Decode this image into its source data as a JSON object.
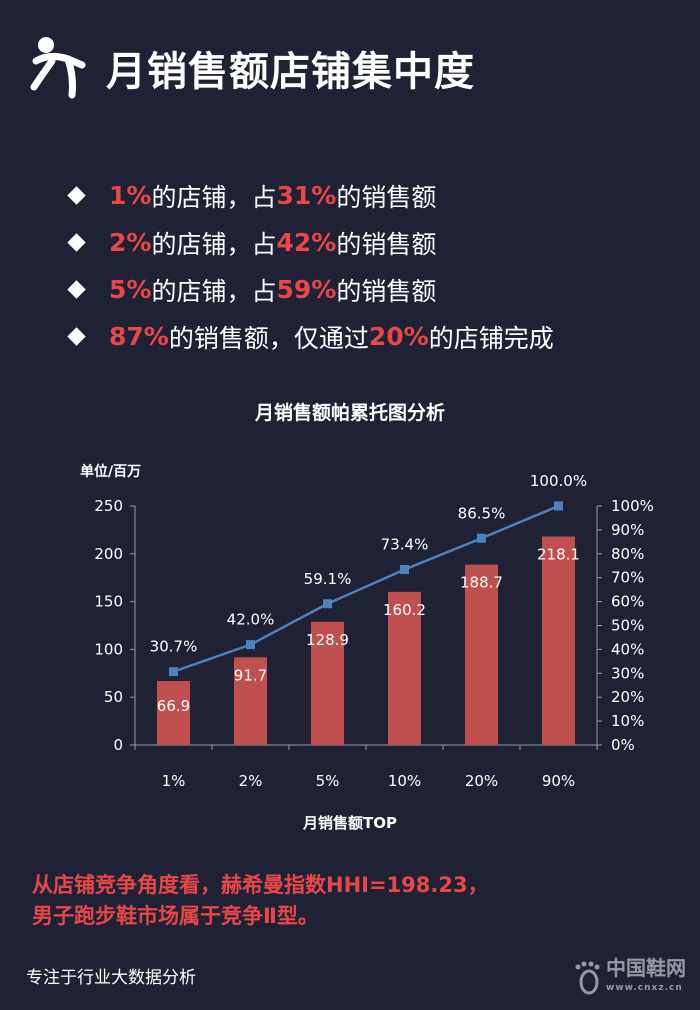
{
  "header": {
    "title": "月销售额店铺集中度",
    "icon": "runner-icon"
  },
  "bullets": [
    {
      "parts": [
        {
          "t": "1%",
          "r": true
        },
        {
          "t": "的店铺，占",
          "r": false
        },
        {
          "t": "31%",
          "r": true
        },
        {
          "t": "的销售额",
          "r": false
        }
      ]
    },
    {
      "parts": [
        {
          "t": "2%",
          "r": true
        },
        {
          "t": "的店铺，占",
          "r": false
        },
        {
          "t": "42%",
          "r": true
        },
        {
          "t": "的销售额",
          "r": false
        }
      ]
    },
    {
      "parts": [
        {
          "t": "5%",
          "r": true
        },
        {
          "t": "的店铺，占",
          "r": false
        },
        {
          "t": "59%",
          "r": true
        },
        {
          "t": "的销售额",
          "r": false
        }
      ]
    },
    {
      "parts": [
        {
          "t": "87%",
          "r": true
        },
        {
          "t": "的销售额，仅通过",
          "r": false
        },
        {
          "t": "20%",
          "r": true
        },
        {
          "t": "的店铺完成",
          "r": false
        }
      ]
    }
  ],
  "chart_data": {
    "type": "bar",
    "title": "月销售额帕累托图分析",
    "ylabel": "单位/百万",
    "xlabel": "月销售额TOP",
    "categories": [
      "1%",
      "2%",
      "5%",
      "10%",
      "20%",
      "90%"
    ],
    "series": [
      {
        "type": "bar",
        "axis": "left",
        "values": [
          66.9,
          91.7,
          128.9,
          160.2,
          188.7,
          218.1
        ],
        "labels": [
          "66.9",
          "91.7",
          "128.9",
          "160.2",
          "188.7",
          "218.1"
        ],
        "color": "#c0504d"
      },
      {
        "type": "line",
        "axis": "right",
        "values": [
          30.7,
          42.0,
          59.1,
          73.4,
          86.5,
          100.0
        ],
        "labels": [
          "30.7%",
          "42.0%",
          "59.1%",
          "73.4%",
          "86.5%",
          "100.0%"
        ],
        "color": "#4f81bd"
      }
    ],
    "ylim": [
      0,
      250
    ],
    "yticks": [
      "0",
      "50",
      "100",
      "150",
      "200",
      "250"
    ],
    "y2lim": [
      0,
      100
    ],
    "y2ticks": [
      "0%",
      "10%",
      "20%",
      "30%",
      "40%",
      "50%",
      "60%",
      "70%",
      "80%",
      "90%",
      "100%"
    ],
    "grid": false
  },
  "conclusion": {
    "line1": "从店铺竞争角度看，赫希曼指数HHI=198.23，",
    "line2": "男子跑步鞋市场属于竞争Ⅱ型。"
  },
  "footer": {
    "text": "专注于行业大数据分析"
  },
  "watermark": {
    "name": "中国鞋网",
    "url": "www.cnxz.cn"
  },
  "colors": {
    "background": "#1f2234",
    "accent": "#e8474a",
    "bar": "#c0504d",
    "line": "#4f81bd"
  }
}
